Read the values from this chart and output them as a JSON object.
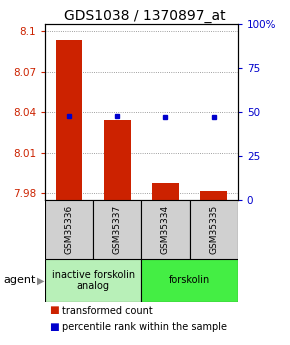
{
  "title": "GDS1038 / 1370897_at",
  "samples": [
    "GSM35336",
    "GSM35337",
    "GSM35334",
    "GSM35335"
  ],
  "red_values": [
    8.093,
    8.034,
    7.988,
    7.982
  ],
  "blue_values": [
    48,
    48,
    47,
    47
  ],
  "ylim_left": [
    7.975,
    8.105
  ],
  "ylim_right": [
    0,
    100
  ],
  "yticks_left": [
    7.98,
    8.01,
    8.04,
    8.07,
    8.1
  ],
  "yticks_right": [
    0,
    25,
    50,
    75,
    100
  ],
  "groups": [
    {
      "label": "inactive forskolin\nanalog",
      "start": 0,
      "end": 2,
      "color": "#b8f0b8"
    },
    {
      "label": "forskolin",
      "start": 2,
      "end": 4,
      "color": "#44ee44"
    }
  ],
  "bar_color": "#cc2200",
  "dot_color": "#0000cc",
  "bar_bottom": 7.975,
  "agent_label": "agent",
  "legend_items": [
    {
      "color": "#cc2200",
      "label": "transformed count"
    },
    {
      "color": "#0000cc",
      "label": "percentile rank within the sample"
    }
  ],
  "title_fontsize": 10,
  "tick_fontsize": 7.5,
  "sample_fontsize": 6.5,
  "group_fontsize": 7,
  "legend_fontsize": 7
}
